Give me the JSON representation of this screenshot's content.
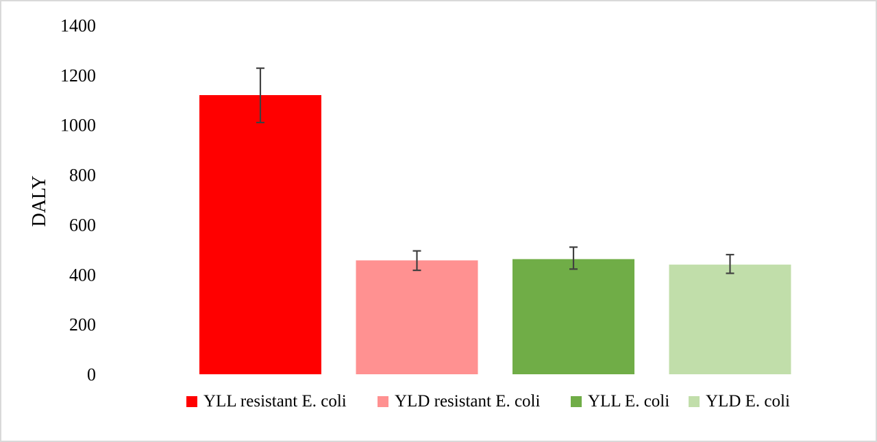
{
  "chart_data": {
    "type": "bar",
    "title": "",
    "xlabel": "",
    "ylabel": "DALY",
    "ylim": [
      0,
      1400
    ],
    "yticks": [
      0,
      200,
      400,
      600,
      800,
      1000,
      1200,
      1400
    ],
    "grid": false,
    "legend_position": "bottom",
    "categories": [
      "YLL resistant E. coli",
      "YLD resistant E. coli",
      "YLL E. coli",
      "YLD E. coli"
    ],
    "values": [
      1120,
      457,
      462,
      440
    ],
    "error_low": [
      1010,
      417,
      422,
      405
    ],
    "error_high": [
      1228,
      495,
      510,
      480
    ],
    "colors": [
      "#ff0000",
      "#ff9191",
      "#70ad47",
      "#c1deaa"
    ],
    "error_bar_color": "#404040"
  }
}
